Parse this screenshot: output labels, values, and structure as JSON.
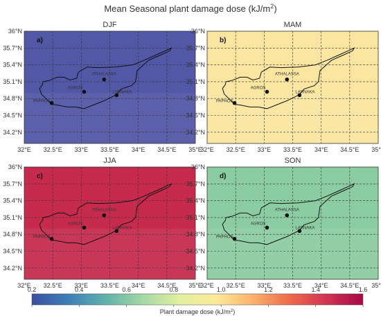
{
  "chart_data": {
    "type": "heatmap",
    "title": "Mean Seasonal plant damage dose (kJ/m",
    "title_superscript": "2",
    "title_suffix": ")",
    "x_ticks": [
      "32°E",
      "32.5°E",
      "33°E",
      "33.5°E",
      "34°E",
      "34.5°E",
      "35°E"
    ],
    "x_tick_values": [
      32,
      32.5,
      33,
      33.5,
      34,
      34.5,
      35
    ],
    "y_ticks": [
      "36°N",
      "35.7°N",
      "35.4°N",
      "35.1°N",
      "34.8°N",
      "34.5°N",
      "34.2°N"
    ],
    "y_tick_values": [
      36,
      35.7,
      35.4,
      35.1,
      34.8,
      34.5,
      34.2
    ],
    "lon_range": [
      32,
      35
    ],
    "lat_range": [
      34,
      36
    ],
    "grid": true,
    "sites": [
      {
        "name": "ATHALASSA",
        "lon": 33.4,
        "lat": 35.14
      },
      {
        "name": "AGROS",
        "lon": 33.05,
        "lat": 34.92
      },
      {
        "name": "LARNAKA",
        "lon": 33.62,
        "lat": 34.86
      },
      {
        "name": "PAPHOS",
        "lon": 32.48,
        "lat": 34.72
      }
    ],
    "panels": [
      {
        "letter": "a)",
        "season": "DJF",
        "mean_value": 0.32,
        "base_color": "#5257a6"
      },
      {
        "letter": "b)",
        "season": "MAM",
        "mean_value": 1.05,
        "base_color": "#fae6a0"
      },
      {
        "letter": "c)",
        "season": "JJA",
        "mean_value": 1.48,
        "base_color": "#c62b4e"
      },
      {
        "letter": "d)",
        "season": "SON",
        "mean_value": 0.75,
        "base_color": "#8ccca2"
      }
    ],
    "colorbar": {
      "min": 0.2,
      "max": 1.6,
      "ticks": [
        "0.2",
        "0.4",
        "0.6",
        "0.8",
        "1.0",
        "1.2",
        "1.4",
        "1.6"
      ],
      "tick_values": [
        0.2,
        0.4,
        0.6,
        0.8,
        1.0,
        1.2,
        1.4,
        1.6
      ],
      "label": "Plant damage dose (kJ/m",
      "label_superscript": "2",
      "label_suffix": ")",
      "colors": [
        "#3b4fa0",
        "#3f7fb8",
        "#5fb1ac",
        "#a3d7a4",
        "#e1efa1",
        "#fde99b",
        "#f9b26b",
        "#ee6b4c",
        "#d03454",
        "#a50a45"
      ]
    }
  }
}
